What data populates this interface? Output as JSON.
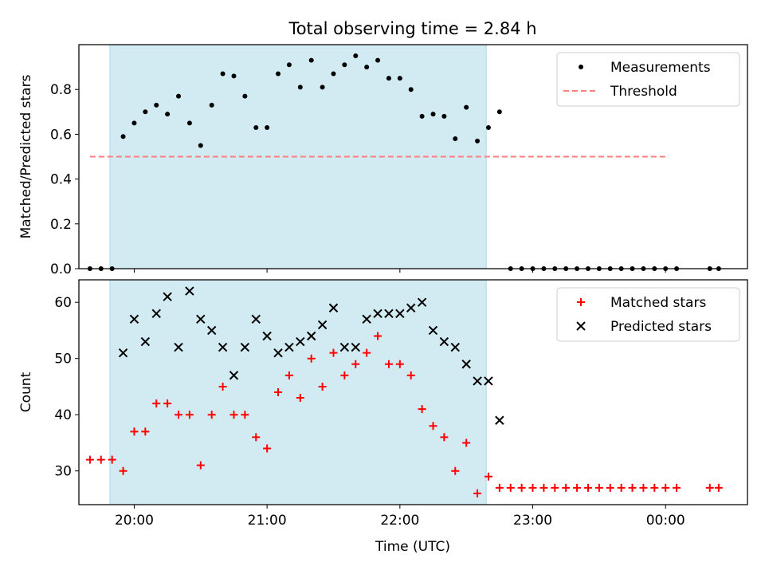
{
  "chart_data": {
    "title": "Total observing time = 2.84 h",
    "xlabel": "Time (UTC)",
    "x_ticks": [
      "20:00",
      "21:00",
      "22:00",
      "23:00",
      "00:00"
    ],
    "x_tick_values": [
      20.0,
      21.0,
      22.0,
      23.0,
      24.0
    ],
    "xlim": [
      "19:35",
      "00:37"
    ],
    "shaded_interval": [
      "19:49",
      "22:39"
    ],
    "shade_color": "#add8e6",
    "panels": [
      {
        "type": "scatter",
        "ylabel": "Matched/Predicted stars",
        "ylim": [
          0,
          1.0
        ],
        "y_ticks": [
          "0.0",
          "0.2",
          "0.4",
          "0.6",
          "0.8"
        ],
        "y_tick_values": [
          0.0,
          0.2,
          0.4,
          0.6,
          0.8
        ],
        "legend_position": "top-right",
        "series": [
          {
            "name": "Measurements",
            "marker": "dot",
            "color": "#000000",
            "x": [
              "19:40",
              "19:45",
              "19:50",
              "19:55",
              "20:00",
              "20:05",
              "20:10",
              "20:15",
              "20:20",
              "20:25",
              "20:30",
              "20:35",
              "20:40",
              "20:45",
              "20:50",
              "20:55",
              "21:00",
              "21:05",
              "21:10",
              "21:15",
              "21:20",
              "21:25",
              "21:30",
              "21:35",
              "21:40",
              "21:45",
              "21:50",
              "21:55",
              "22:00",
              "22:05",
              "22:10",
              "22:15",
              "22:20",
              "22:25",
              "22:30",
              "22:35",
              "22:40",
              "22:45",
              "22:50",
              "22:55",
              "23:00",
              "23:05",
              "23:10",
              "23:15",
              "23:20",
              "23:25",
              "23:30",
              "23:35",
              "23:40",
              "23:45",
              "23:50",
              "23:55",
              "00:00",
              "00:05",
              "00:20",
              "00:24"
            ],
            "y": [
              0,
              0,
              0,
              0.59,
              0.65,
              0.7,
              0.73,
              0.69,
              0.77,
              0.65,
              0.55,
              0.73,
              0.87,
              0.86,
              0.77,
              0.63,
              0.63,
              0.87,
              0.91,
              0.81,
              0.93,
              0.81,
              0.87,
              0.91,
              0.95,
              0.9,
              0.93,
              0.85,
              0.85,
              0.8,
              0.68,
              0.69,
              0.68,
              0.58,
              0.72,
              0.57,
              0.63,
              0.7,
              0,
              0,
              0,
              0,
              0,
              0,
              0,
              0,
              0,
              0,
              0,
              0,
              0,
              0,
              0,
              0,
              0,
              0
            ]
          },
          {
            "name": "Threshold",
            "type": "line",
            "style": "dashed",
            "color": "#ff7f7f",
            "x": [
              "19:40",
              "24:00"
            ],
            "y": [
              0.5,
              0.5
            ]
          }
        ]
      },
      {
        "type": "scatter",
        "ylabel": "Count",
        "ylim": [
          24,
          64
        ],
        "y_ticks": [
          "30",
          "40",
          "50",
          "60"
        ],
        "y_tick_values": [
          30,
          40,
          50,
          60
        ],
        "legend_position": "top-right",
        "series": [
          {
            "name": "Matched stars",
            "marker": "plus",
            "color": "#ff0000",
            "x": [
              "19:40",
              "19:45",
              "19:50",
              "19:55",
              "20:00",
              "20:05",
              "20:10",
              "20:15",
              "20:20",
              "20:25",
              "20:30",
              "20:35",
              "20:40",
              "20:45",
              "20:50",
              "20:55",
              "21:00",
              "21:05",
              "21:10",
              "21:15",
              "21:20",
              "21:25",
              "21:30",
              "21:35",
              "21:40",
              "21:45",
              "21:50",
              "21:55",
              "22:00",
              "22:05",
              "22:10",
              "22:15",
              "22:20",
              "22:25",
              "22:30",
              "22:35",
              "22:40",
              "22:45",
              "22:50",
              "22:55",
              "23:00",
              "23:05",
              "23:10",
              "23:15",
              "23:20",
              "23:25",
              "23:30",
              "23:35",
              "23:40",
              "23:45",
              "23:50",
              "23:55",
              "00:00",
              "00:05",
              "00:20",
              "00:24"
            ],
            "y": [
              32,
              32,
              32,
              30,
              37,
              37,
              42,
              42,
              40,
              40,
              31,
              40,
              45,
              40,
              40,
              36,
              34,
              44,
              47,
              43,
              50,
              45,
              51,
              47,
              49,
              51,
              54,
              49,
              49,
              47,
              41,
              38,
              36,
              30,
              35,
              26,
              29,
              27,
              27,
              27,
              27,
              27,
              27,
              27,
              27,
              27,
              27,
              27,
              27,
              27,
              27,
              27,
              27,
              27,
              27,
              27
            ]
          },
          {
            "name": "Predicted stars",
            "marker": "x",
            "color": "#000000",
            "x": [
              "19:55",
              "20:00",
              "20:05",
              "20:10",
              "20:15",
              "20:20",
              "20:25",
              "20:30",
              "20:35",
              "20:40",
              "20:45",
              "20:50",
              "20:55",
              "21:00",
              "21:05",
              "21:10",
              "21:15",
              "21:20",
              "21:25",
              "21:30",
              "21:35",
              "21:40",
              "21:45",
              "21:50",
              "21:55",
              "22:00",
              "22:05",
              "22:10",
              "22:15",
              "22:20",
              "22:25",
              "22:30",
              "22:35",
              "22:40",
              "22:45"
            ],
            "y": [
              51,
              57,
              53,
              58,
              61,
              52,
              62,
              57,
              55,
              52,
              47,
              52,
              57,
              54,
              51,
              52,
              53,
              54,
              56,
              59,
              52,
              52,
              57,
              58,
              58,
              58,
              59,
              60,
              55,
              53,
              52,
              49,
              46,
              46,
              39
            ]
          }
        ]
      }
    ]
  }
}
